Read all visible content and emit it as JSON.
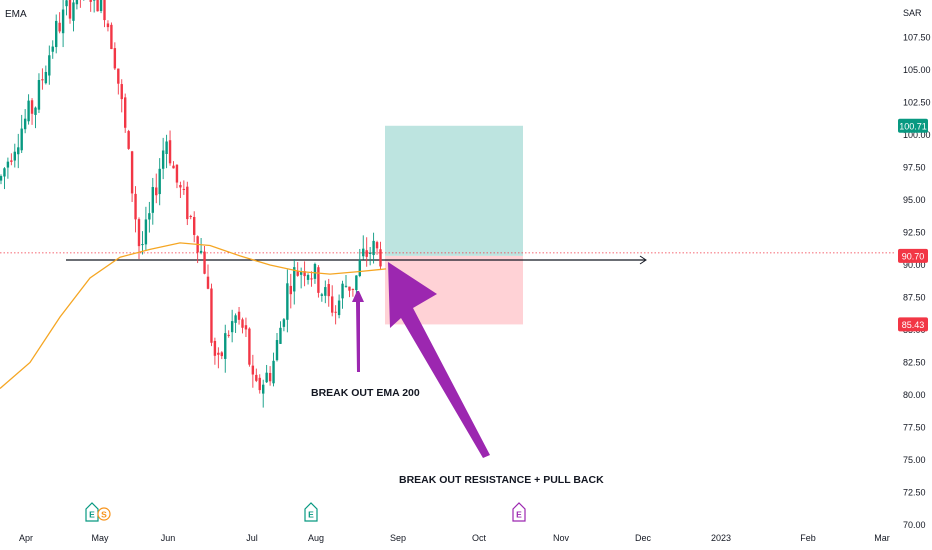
{
  "indicator_label": "EMA",
  "currency": "SAR",
  "price_axis": {
    "ticks": [
      "107.50",
      "105.00",
      "102.50",
      "100.00",
      "97.50",
      "95.00",
      "92.50",
      "90.00",
      "87.50",
      "85.00",
      "82.50",
      "80.00",
      "77.50",
      "75.00",
      "72.50",
      "70.00"
    ],
    "min": 70.0,
    "max": 110.0
  },
  "time_axis": {
    "ticks": [
      "Apr",
      "May",
      "Jun",
      "Jul",
      "Aug",
      "Sep",
      "Oct",
      "Nov",
      "Dec",
      "2023",
      "Feb",
      "Mar"
    ]
  },
  "price_badges": {
    "target": {
      "label": "100.71",
      "value": 100.71,
      "color": "#089981"
    },
    "current": {
      "label": "90.70",
      "value": 90.7,
      "color": "#f23645"
    },
    "stop": {
      "label": "85.43",
      "value": 85.43,
      "color": "#f23645"
    }
  },
  "annotations": {
    "ema_break": "BREAK OUT EMA 200",
    "resistance_break": "BREAK OUT RESISTANCE + PULL BACK"
  },
  "event_markers": [
    {
      "month": "May",
      "letters": [
        "E",
        "S"
      ]
    },
    {
      "month": "Aug",
      "letters": [
        "E"
      ]
    },
    {
      "month": "Oct",
      "letters": [
        "E"
      ]
    }
  ],
  "colors": {
    "up": "#089981",
    "down": "#f23645",
    "ema": "#f5a623",
    "arrow": "#9c27b0",
    "target_zone": "#b2dfdb",
    "stop_zone": "#ffcdd2"
  },
  "chart_data": {
    "type": "candlestick",
    "series_names": [
      "EMA 200"
    ],
    "resistance_level": 90.7,
    "position": {
      "entry": 90.7,
      "target": 100.71,
      "stop": 85.43
    },
    "key_points": [
      {
        "month": "Apr",
        "approx_close": 96.5
      },
      {
        "month": "May",
        "approx_close": 109.0
      },
      {
        "month": "Jun",
        "approx_close": 90.5
      },
      {
        "month": "Jul",
        "approx_close": 80.0
      },
      {
        "month": "Aug",
        "approx_close": 88.5
      },
      {
        "month": "Sep",
        "approx_close": 90.7
      }
    ],
    "ylim": [
      70,
      110
    ]
  }
}
